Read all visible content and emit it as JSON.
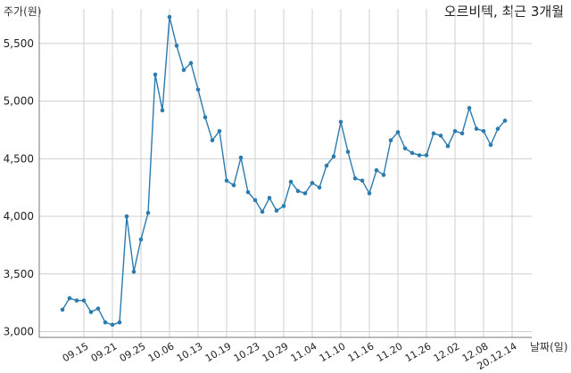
{
  "chart_data": {
    "type": "line",
    "title": "오르비텍, 최근 3개월",
    "ylabel": "주가(원)",
    "xlabel": "날짜(일)",
    "ylim": [
      2950,
      5800
    ],
    "yticks": [
      3000,
      3500,
      4000,
      4500,
      5000,
      5500
    ],
    "ytick_labels": [
      "3,000",
      "3,500",
      "4,000",
      "4,500",
      "5,000",
      "5,500"
    ],
    "xtick_labels": [
      "09.15",
      "09.21",
      "09.25",
      "10.06",
      "10.13",
      "10.19",
      "10.23",
      "10.29",
      "11.04",
      "11.10",
      "11.16",
      "11.20",
      "11.26",
      "12.02",
      "12.08",
      "20.12.14"
    ],
    "xtick_index": [
      3,
      7,
      11,
      15,
      19,
      23,
      27,
      31,
      35,
      39,
      43,
      47,
      51,
      55,
      59,
      63
    ],
    "grid": true,
    "color": "#2b7bb0",
    "values": [
      3190,
      3290,
      3270,
      3270,
      3170,
      3200,
      3080,
      3060,
      3080,
      4000,
      3520,
      3800,
      4030,
      5230,
      4920,
      5730,
      5480,
      5270,
      5330,
      5100,
      4860,
      4660,
      4740,
      4310,
      4270,
      4510,
      4210,
      4140,
      4040,
      4160,
      4050,
      4090,
      4300,
      4220,
      4200,
      4290,
      4250,
      4440,
      4520,
      4820,
      4560,
      4330,
      4310,
      4200,
      4400,
      4360,
      4660,
      4730,
      4590,
      4550,
      4530,
      4530,
      4720,
      4700,
      4610,
      4740,
      4720,
      4940,
      4760,
      4740,
      4620,
      4760,
      4830
    ]
  }
}
